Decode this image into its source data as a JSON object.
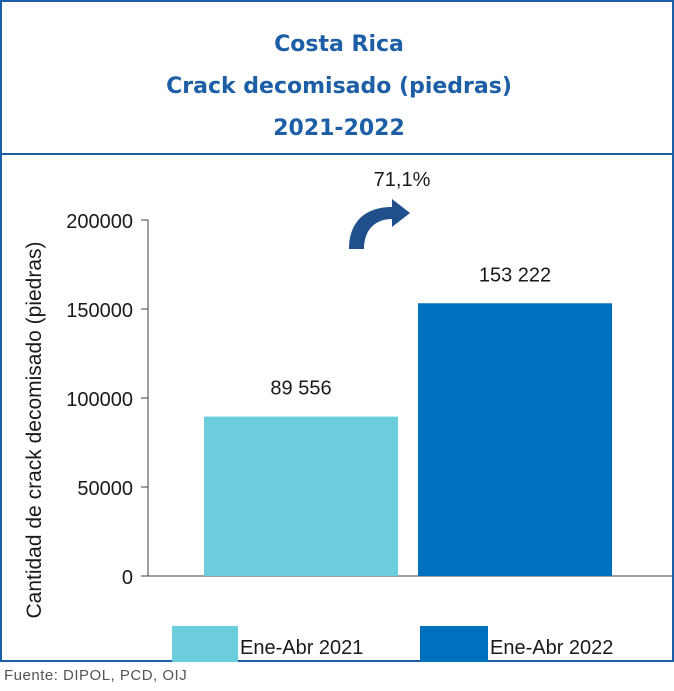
{
  "title": {
    "line1": "Costa Rica",
    "line2": "Crack decomisado (piedras)",
    "line3": "2021-2022"
  },
  "source": "Fuente: DIPOL, PCD, OIJ",
  "colors": {
    "frame": "#1a5fa8",
    "title": "#1d5fa6",
    "arrow": "#1f4f8c"
  },
  "chart_data": {
    "type": "bar",
    "categories": [
      "Ene-Abr 2021",
      "Ene-Abr 2022"
    ],
    "values": [
      89556,
      153222
    ],
    "value_labels": [
      "89 556",
      "153 222"
    ],
    "colors": [
      "#6ccedc",
      "#006fbe"
    ],
    "ylabel": "Cantidad de crack decomisado (piedras)",
    "ylim": [
      0,
      200000
    ],
    "yticks": [
      0,
      50000,
      100000,
      150000,
      200000
    ],
    "ytick_labels": [
      "0",
      "50000",
      "100000",
      "150000",
      "200000"
    ],
    "annotation": "71,1%",
    "grid": false,
    "legend_position": "bottom"
  }
}
